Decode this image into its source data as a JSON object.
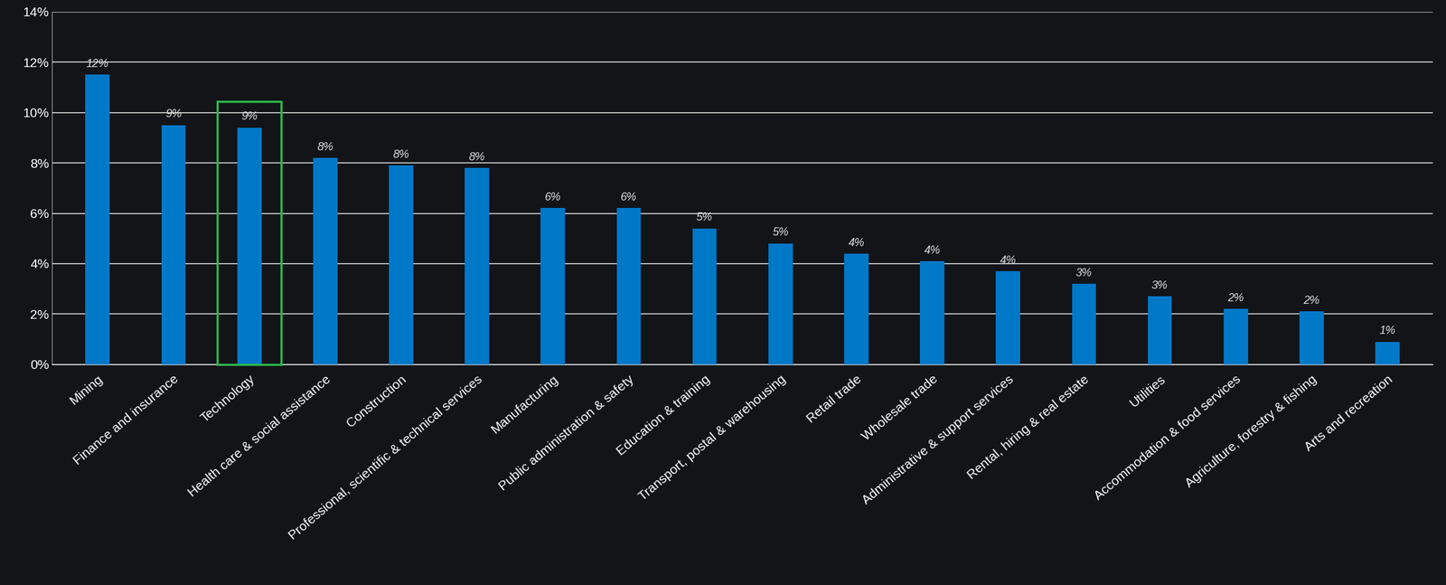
{
  "chart_data": {
    "type": "bar",
    "categories": [
      "Mining",
      "Finance and insurance",
      "Technology",
      "Health care & social assistance",
      "Construction",
      "Professional, scientific & technical services",
      "Manufacturing",
      "Public administration & safety",
      "Education & training",
      "Transport, postal & warehousing",
      "Retail trade",
      "Wholesale trade",
      "Administrative & support services",
      "Rental, hiring & real estate",
      "Utilities",
      "Accommodation & food services",
      "Agriculture, forestry & fishing",
      "Arts and recreation"
    ],
    "values": [
      11.5,
      9.5,
      9.4,
      8.2,
      7.9,
      7.8,
      6.2,
      6.2,
      5.4,
      4.8,
      4.4,
      4.1,
      3.7,
      3.2,
      2.7,
      2.2,
      2.1,
      0.9
    ],
    "value_labels": [
      "12%",
      "9%",
      "9%",
      "8%",
      "8%",
      "8%",
      "6%",
      "6%",
      "5%",
      "5%",
      "4%",
      "4%",
      "4%",
      "3%",
      "3%",
      "2%",
      "2%",
      "1%"
    ],
    "data_labels": true,
    "color": "#0078c8",
    "ylim": [
      0,
      14
    ],
    "yticks": [
      {
        "value": 0,
        "label": "0%"
      },
      {
        "value": 2,
        "label": "2%"
      },
      {
        "value": 4,
        "label": "4%"
      },
      {
        "value": 6,
        "label": "6%"
      },
      {
        "value": 8,
        "label": "8%"
      },
      {
        "value": 10,
        "label": "10%"
      },
      {
        "value": 12,
        "label": "12%"
      },
      {
        "value": 14,
        "label": "14%"
      }
    ],
    "grid": true
  }
}
